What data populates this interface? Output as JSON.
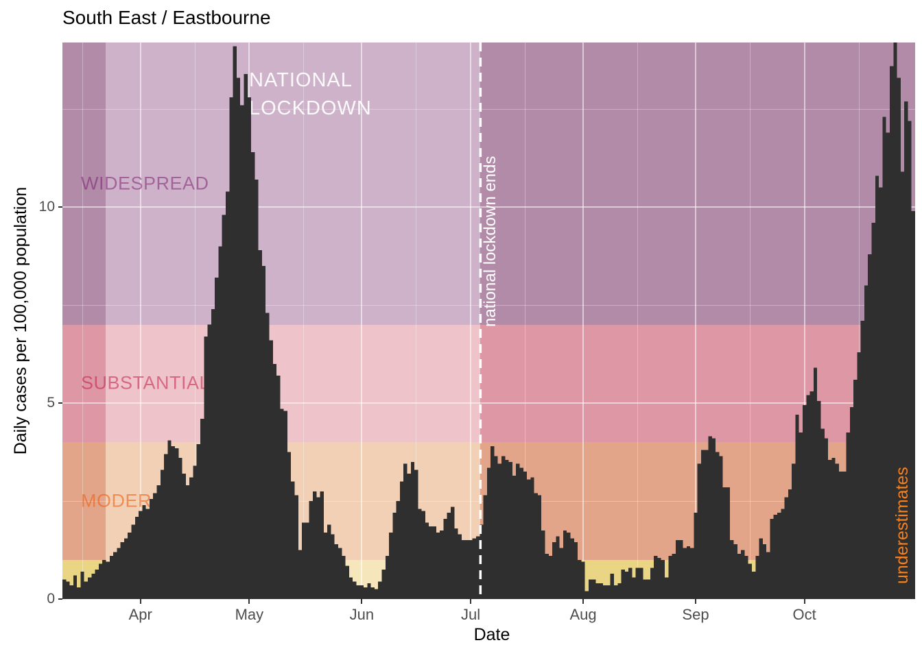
{
  "title": "South East / Eastbourne",
  "axes": {
    "y_label": "Daily cases per 100,000 population",
    "x_label": "Date",
    "y_ticks": [
      {
        "label": "0",
        "value": 0
      },
      {
        "label": "5",
        "value": 5
      },
      {
        "label": "10",
        "value": 10
      }
    ],
    "y_minor": [
      2.5,
      7.5,
      12.5
    ],
    "x_ticks": [
      {
        "label": "Apr",
        "day": 21.5
      },
      {
        "label": "May",
        "day": 51.5
      },
      {
        "label": "Jun",
        "day": 82.5
      },
      {
        "label": "Jul",
        "day": 112.5
      },
      {
        "label": "Aug",
        "day": 143.5
      },
      {
        "label": "Sep",
        "day": 174.5
      },
      {
        "label": "Oct",
        "day": 204.5
      }
    ],
    "x_minor_days": [
      5.5,
      36.5,
      66.5,
      97.5,
      127.5,
      158.5,
      189.5,
      219.5
    ]
  },
  "bands": [
    {
      "name": "widespread",
      "label": "WIDESPREAD",
      "from": 7,
      "to": 14.2,
      "color_light": "#cdb2c9",
      "color_dark": "#b28ba9",
      "label_ink": "rgba(120,20,110,0.5)"
    },
    {
      "name": "substantial",
      "label": "SUBSTANTIAL",
      "from": 4,
      "to": 7,
      "color_light": "#eec3c9",
      "color_dark": "#de97a4",
      "label_ink": "rgba(190,15,60,0.5)"
    },
    {
      "name": "moderate",
      "label": "MODERATE",
      "from": 1,
      "to": 4,
      "color_light": "#f1d0b6",
      "color_dark": "#e2a589",
      "label_ink": "rgba(235,95,20,0.6)"
    },
    {
      "name": "low",
      "label": "",
      "from": 0,
      "to": 1,
      "color_light": "#f5e7bb",
      "color_dark": "#e9d583",
      "label_ink": "rgba(0,0,0,0)"
    }
  ],
  "annotations": {
    "lockdown_lines": [
      "NATIONAL",
      "LOCKDOWN"
    ],
    "lockdown_end_label": "national lockdown ends",
    "underestimates_label": "underestimates",
    "underestimates_color": "#f5821e",
    "lockdown_start_day": 12,
    "lockdown_end_day": 115.2,
    "dash_line_color": "#ffffff"
  },
  "chart_data": {
    "type": "bar",
    "title": "South East / Eastbourne",
    "xlabel": "Date",
    "ylabel": "Daily cases per 100,000 population",
    "x_start_date": "2020-03-11",
    "x_end_date": "2020-10-31",
    "x_unit": "day",
    "ylim": [
      0,
      14.2
    ],
    "bar_color": "#2f2f2f",
    "legend": "none",
    "grid": "white major (0,5,10; month starts) and minor (2.5,7.5,12.5; mid-month) lines over shaded risk bands",
    "values": [
      0.5,
      0.45,
      0.35,
      0.6,
      0.3,
      0.7,
      0.45,
      0.55,
      0.65,
      0.75,
      0.9,
      1.0,
      0.95,
      1.1,
      1.2,
      1.3,
      1.45,
      1.55,
      1.7,
      1.9,
      2.1,
      2.25,
      2.4,
      2.3,
      2.55,
      2.7,
      2.9,
      3.3,
      3.7,
      4.05,
      3.9,
      3.85,
      3.6,
      3.2,
      2.9,
      3.1,
      3.4,
      3.95,
      4.6,
      6.7,
      7.0,
      7.4,
      8.2,
      9.0,
      9.8,
      10.4,
      12.8,
      14.1,
      13.3,
      12.6,
      13.4,
      12.8,
      11.4,
      10.7,
      8.9,
      8.5,
      7.3,
      6.6,
      6.0,
      5.7,
      4.85,
      4.8,
      3.75,
      3.0,
      2.65,
      1.25,
      1.95,
      1.95,
      2.5,
      2.75,
      2.6,
      2.75,
      1.7,
      1.9,
      1.65,
      1.4,
      1.3,
      1.1,
      0.85,
      0.55,
      0.45,
      0.35,
      0.35,
      0.3,
      0.4,
      0.3,
      0.25,
      0.45,
      0.75,
      1.1,
      1.7,
      2.2,
      2.5,
      3.0,
      3.45,
      3.2,
      3.5,
      3.3,
      2.3,
      2.25,
      1.95,
      1.85,
      1.85,
      1.7,
      1.75,
      2.05,
      2.2,
      2.35,
      1.8,
      1.65,
      1.5,
      1.5,
      1.5,
      1.55,
      1.6,
      1.9,
      2.65,
      3.35,
      3.9,
      3.65,
      3.45,
      3.65,
      3.55,
      3.5,
      3.15,
      3.45,
      3.35,
      3.25,
      3.05,
      3.1,
      2.7,
      2.65,
      1.75,
      1.15,
      1.1,
      1.45,
      1.6,
      1.3,
      1.75,
      1.7,
      1.55,
      1.45,
      1.0,
      0.95,
      0.2,
      0.5,
      0.5,
      0.4,
      0.4,
      0.35,
      0.35,
      0.65,
      0.35,
      0.4,
      0.75,
      0.7,
      0.8,
      0.55,
      0.8,
      0.8,
      0.5,
      0.5,
      0.8,
      1.1,
      1.05,
      1.0,
      0.55,
      1.1,
      1.15,
      1.5,
      1.5,
      1.3,
      1.35,
      1.3,
      2.2,
      3.45,
      3.8,
      3.8,
      4.15,
      4.1,
      3.75,
      3.65,
      2.85,
      2.85,
      1.5,
      1.4,
      1.15,
      1.25,
      1.1,
      0.9,
      0.7,
      1.1,
      1.55,
      1.4,
      1.2,
      2.05,
      2.15,
      2.2,
      2.3,
      2.6,
      2.8,
      3.45,
      4.7,
      4.25,
      4.95,
      5.2,
      5.3,
      5.9,
      5.05,
      4.35,
      4.1,
      3.55,
      3.6,
      3.45,
      3.25,
      3.25,
      4.25,
      4.9,
      5.6,
      6.3,
      7.1,
      8.0,
      8.8,
      9.6,
      10.8,
      10.5,
      12.3,
      11.9,
      13.6,
      14.25,
      13.3,
      10.9,
      12.7,
      12.2,
      9.9
    ]
  }
}
